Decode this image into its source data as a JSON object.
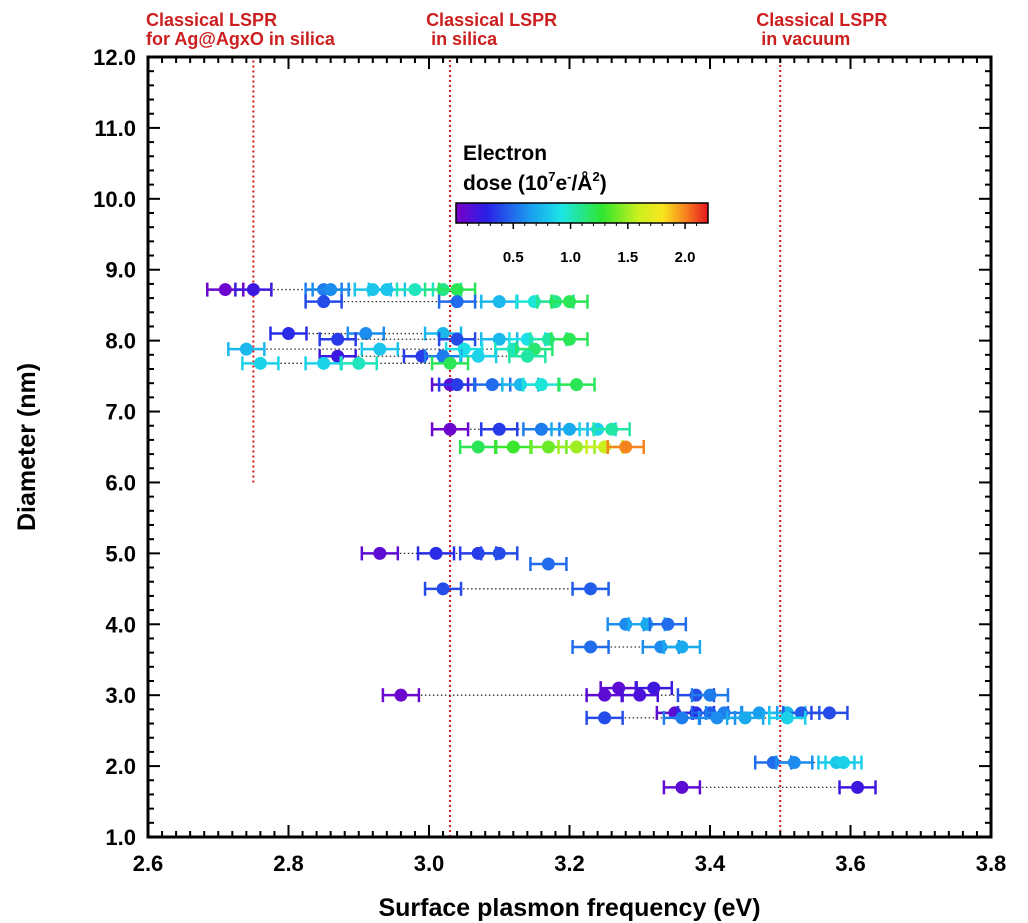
{
  "chart_data": {
    "type": "scatter",
    "xlabel": "Surface plasmon frequency (eV)",
    "ylabel": "Diameter (nm)",
    "xlim": [
      2.6,
      3.8
    ],
    "ylim": [
      1.0,
      12.0
    ],
    "x_ticks": [
      "2.6",
      "2.8",
      "3.0",
      "3.2",
      "3.4",
      "3.6",
      "3.8"
    ],
    "y_ticks": [
      "1.0",
      "2.0",
      "3.0",
      "4.0",
      "5.0",
      "6.0",
      "7.0",
      "8.0",
      "9.0",
      "10.0",
      "11.0",
      "12.0"
    ],
    "reference_lines": [
      {
        "x": 2.75,
        "y_from": 6.0,
        "y_to": 12.0,
        "label": [
          "Classical LSPR",
          "for Ag@AgxO in silica"
        ]
      },
      {
        "x": 3.03,
        "y_from": 1.0,
        "y_to": 12.0,
        "label": [
          "Classical LSPR",
          " in silica"
        ]
      },
      {
        "x": 3.5,
        "y_from": 1.0,
        "y_to": 12.0,
        "label": [
          "Classical LSPR",
          " in vacuum"
        ]
      }
    ],
    "colorbar": {
      "title_line1": "Electron",
      "title_parts": [
        "dose (10",
        "7",
        "e",
        "-",
        "/Å",
        "2",
        ")"
      ],
      "ticks": [
        "0.5",
        "1.0",
        "1.5",
        "2.0"
      ],
      "tick_values": [
        0.5,
        1.0,
        1.5,
        2.0
      ],
      "range": [
        0.0,
        2.2
      ]
    },
    "series": [
      {
        "d": 8.72,
        "pts": [
          [
            2.71,
            0.05
          ],
          [
            2.75,
            0.2
          ],
          [
            2.85,
            0.55
          ],
          [
            2.86,
            0.6
          ],
          [
            2.92,
            0.8
          ],
          [
            2.94,
            0.8
          ],
          [
            2.98,
            1.0
          ],
          [
            3.02,
            1.1
          ],
          [
            3.04,
            1.2
          ]
        ]
      },
      {
        "d": 8.55,
        "pts": [
          [
            2.85,
            0.4
          ],
          [
            3.04,
            0.5
          ],
          [
            3.1,
            0.75
          ],
          [
            3.15,
            0.95
          ],
          [
            3.18,
            1.1
          ],
          [
            3.2,
            1.2
          ]
        ]
      },
      {
        "d": 8.1,
        "pts": [
          [
            2.8,
            0.3
          ],
          [
            2.91,
            0.6
          ],
          [
            3.02,
            0.75
          ]
        ]
      },
      {
        "d": 8.02,
        "pts": [
          [
            2.87,
            0.35
          ],
          [
            3.04,
            0.4
          ],
          [
            3.1,
            0.75
          ],
          [
            3.14,
            0.9
          ],
          [
            3.17,
            1.05
          ],
          [
            3.2,
            1.2
          ]
        ]
      },
      {
        "d": 7.88,
        "pts": [
          [
            2.74,
            0.75
          ],
          [
            2.93,
            0.8
          ],
          [
            3.05,
            0.9
          ],
          [
            3.12,
            1.0
          ],
          [
            3.15,
            1.15
          ]
        ]
      },
      {
        "d": 7.78,
        "pts": [
          [
            2.87,
            0.2
          ],
          [
            2.99,
            0.35
          ],
          [
            3.02,
            0.55
          ],
          [
            3.07,
            0.85
          ],
          [
            3.14,
            1.05
          ]
        ]
      },
      {
        "d": 7.68,
        "pts": [
          [
            2.76,
            0.85
          ],
          [
            2.85,
            0.85
          ],
          [
            2.9,
            1.0
          ],
          [
            3.03,
            1.2
          ]
        ]
      },
      {
        "d": 7.38,
        "pts": [
          [
            3.03,
            0.1
          ],
          [
            3.04,
            0.35
          ],
          [
            3.09,
            0.5
          ],
          [
            3.13,
            0.75
          ],
          [
            3.16,
            0.95
          ],
          [
            3.21,
            1.2
          ]
        ]
      },
      {
        "d": 6.75,
        "pts": [
          [
            3.03,
            0.05
          ],
          [
            3.1,
            0.35
          ],
          [
            3.16,
            0.55
          ],
          [
            3.2,
            0.7
          ],
          [
            3.24,
            0.85
          ],
          [
            3.26,
            1.05
          ]
        ]
      },
      {
        "d": 6.5,
        "pts": [
          [
            3.07,
            1.2
          ],
          [
            3.12,
            1.3
          ],
          [
            3.17,
            1.4
          ],
          [
            3.21,
            1.5
          ],
          [
            3.25,
            1.6
          ],
          [
            3.28,
            2.0
          ]
        ]
      },
      {
        "d": 5.0,
        "pts": [
          [
            2.93,
            0.1
          ],
          [
            3.01,
            0.3
          ],
          [
            3.07,
            0.35
          ],
          [
            3.1,
            0.4
          ]
        ]
      },
      {
        "d": 4.85,
        "pts": [
          [
            3.17,
            0.5
          ]
        ]
      },
      {
        "d": 4.5,
        "pts": [
          [
            3.02,
            0.4
          ],
          [
            3.23,
            0.45
          ]
        ]
      },
      {
        "d": 4.0,
        "pts": [
          [
            3.28,
            0.6
          ],
          [
            3.31,
            0.7
          ],
          [
            3.34,
            0.5
          ]
        ]
      },
      {
        "d": 3.68,
        "pts": [
          [
            3.23,
            0.5
          ],
          [
            3.33,
            0.6
          ],
          [
            3.36,
            0.7
          ]
        ]
      },
      {
        "d": 3.1,
        "pts": [
          [
            3.27,
            0.1
          ],
          [
            3.32,
            0.2
          ]
        ]
      },
      {
        "d": 3.0,
        "pts": [
          [
            2.96,
            0.05
          ],
          [
            3.25,
            0.1
          ],
          [
            3.3,
            0.15
          ],
          [
            3.38,
            0.4
          ],
          [
            3.4,
            0.55
          ]
        ]
      },
      {
        "d": 2.75,
        "pts": [
          [
            3.35,
            0.1
          ],
          [
            3.38,
            0.3
          ],
          [
            3.4,
            0.45
          ],
          [
            3.42,
            0.55
          ],
          [
            3.47,
            0.65
          ],
          [
            3.51,
            0.75
          ],
          [
            3.53,
            0.45
          ],
          [
            3.57,
            0.4
          ]
        ]
      },
      {
        "d": 2.68,
        "pts": [
          [
            3.25,
            0.4
          ],
          [
            3.36,
            0.55
          ],
          [
            3.41,
            0.6
          ],
          [
            3.45,
            0.7
          ],
          [
            3.51,
            0.85
          ]
        ]
      },
      {
        "d": 2.05,
        "pts": [
          [
            3.49,
            0.5
          ],
          [
            3.52,
            0.6
          ],
          [
            3.58,
            0.8
          ],
          [
            3.59,
            0.85
          ]
        ]
      },
      {
        "d": 1.7,
        "pts": [
          [
            3.36,
            0.1
          ],
          [
            3.61,
            0.2
          ]
        ]
      }
    ]
  }
}
